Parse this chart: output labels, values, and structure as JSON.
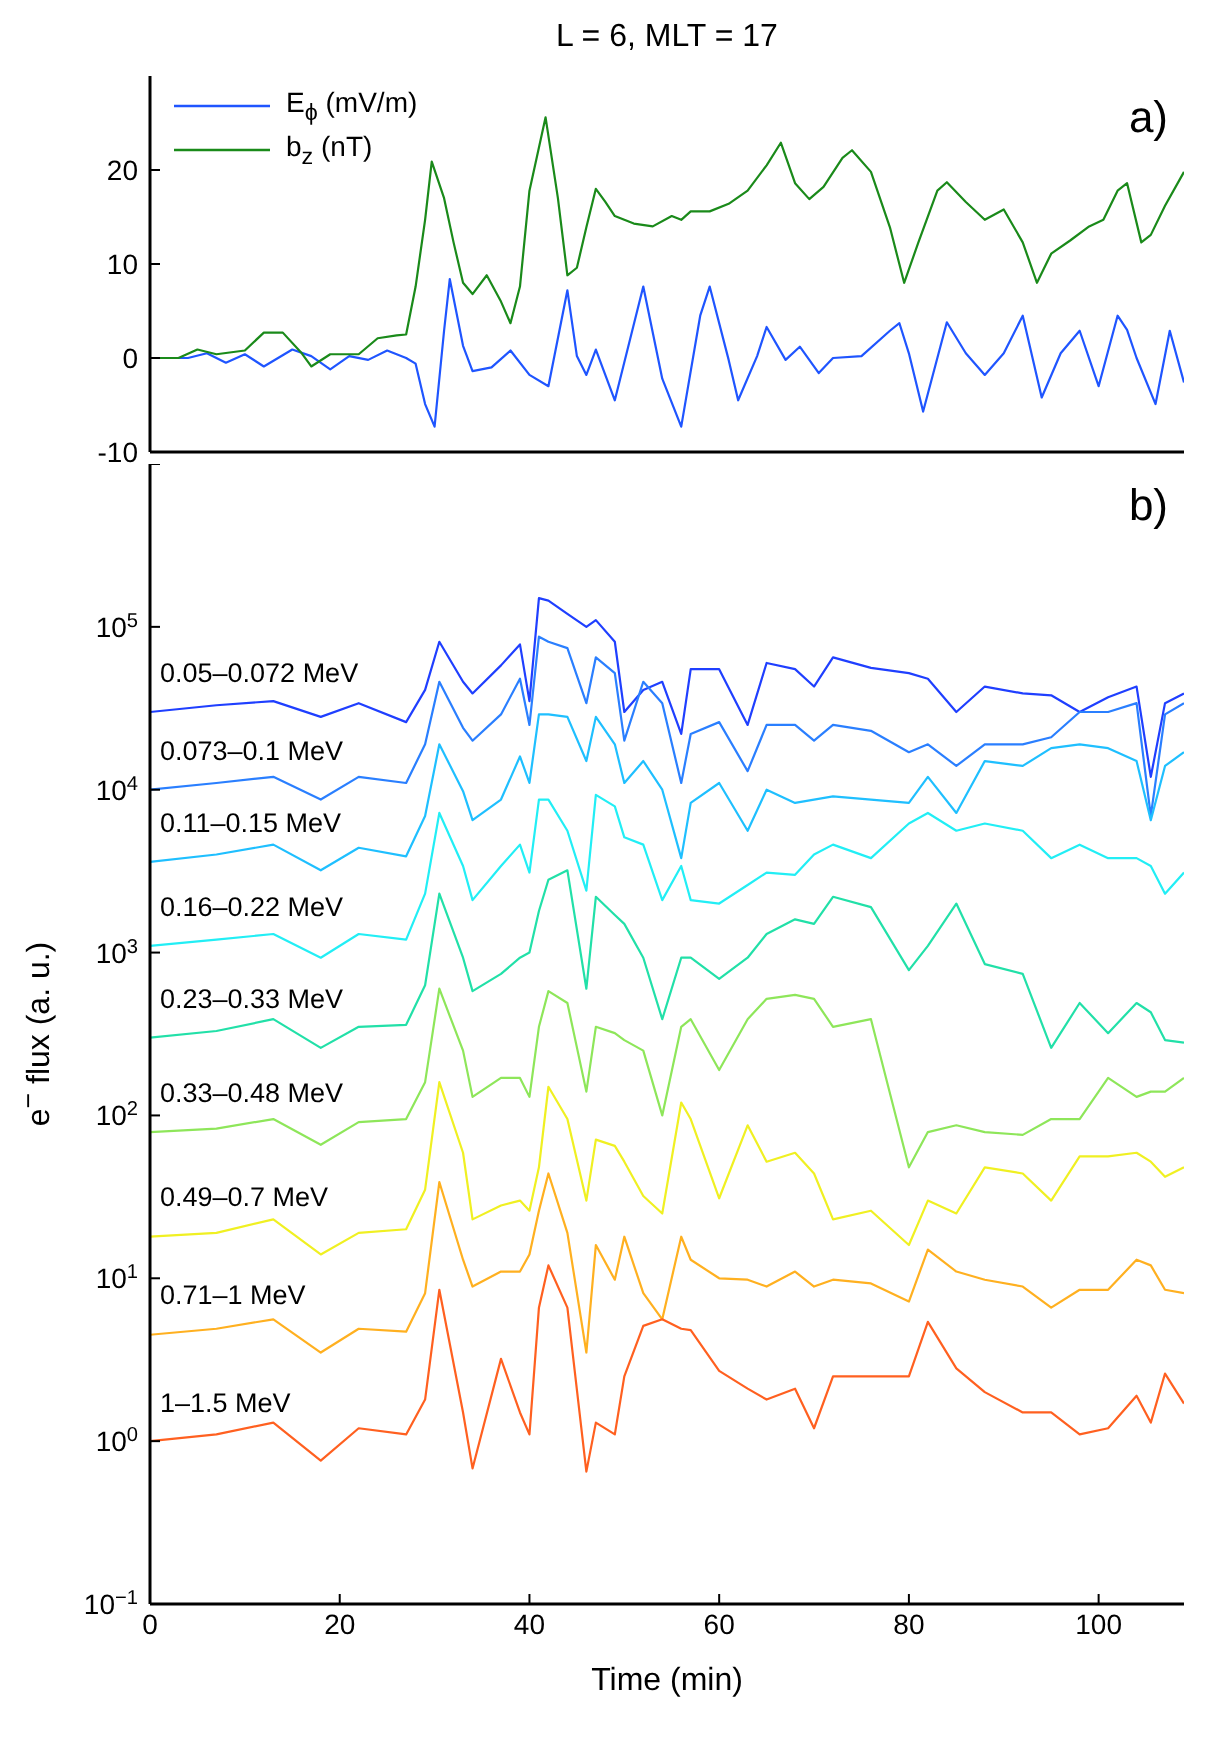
{
  "chart_data": [
    {
      "type": "line",
      "title": "L = 6, MLT = 17",
      "annotations": [
        "a)"
      ],
      "xlim": [
        0,
        109
      ],
      "xticks": [
        0,
        20,
        40,
        60,
        80,
        100
      ],
      "ylim": [
        -10,
        30
      ],
      "yticks": [
        -10,
        0,
        10,
        20
      ],
      "tick_labels": "y",
      "legend": "top left",
      "series": [
        {
          "name": "E$_{ϕ}$ (mV/m)",
          "color": "#1f55ff",
          "x": [
            0,
            4,
            6,
            8,
            10,
            12,
            15,
            17,
            19,
            21,
            23,
            25,
            27,
            28,
            29,
            30,
            31,
            31.6,
            33,
            34,
            36,
            38,
            40,
            42,
            44,
            45,
            46,
            47,
            49,
            52,
            54,
            56,
            58,
            59,
            61,
            62,
            64,
            65,
            67,
            68.5,
            70.5,
            72,
            75,
            78,
            79,
            80,
            81.5,
            84,
            86,
            88,
            90,
            92,
            94,
            96,
            98,
            100,
            102,
            103,
            104,
            106,
            107.5,
            109
          ],
          "values": [
            0,
            0,
            0.5,
            -0.5,
            0.4,
            -0.9,
            0.9,
            0.2,
            -1.2,
            0.2,
            -0.2,
            0.8,
            0,
            -0.6,
            -4.9,
            -7.3,
            2.9,
            8.4,
            1.3,
            -1.4,
            -1,
            0.8,
            -1.8,
            -3,
            7.2,
            0.2,
            -1.8,
            0.9,
            -4.5,
            7.6,
            -2.2,
            -7.3,
            4.5,
            7.6,
            -0.2,
            -4.5,
            0.2,
            3.3,
            -0.2,
            1.2,
            -1.6,
            0,
            0.2,
            2.9,
            3.7,
            0.5,
            -5.7,
            3.8,
            0.5,
            -1.8,
            0.5,
            4.5,
            -4.2,
            0.5,
            2.9,
            -3,
            4.5,
            3,
            0,
            -4.9,
            2.9,
            -2.6
          ]
        },
        {
          "name": "b$_{z}$ (nT)",
          "color": "#1a8a1a",
          "x": [
            0,
            3,
            5,
            7,
            10,
            12,
            14,
            16,
            17,
            19,
            22,
            24,
            26,
            27,
            28,
            29,
            29.7,
            31,
            32,
            33,
            34,
            35.5,
            37,
            38,
            39,
            40,
            41.7,
            43,
            44,
            45,
            46,
            47,
            48,
            49,
            51,
            53,
            55,
            56,
            57,
            59,
            61,
            63,
            65,
            66.5,
            68,
            69.5,
            71,
            73,
            74,
            76,
            78,
            79.5,
            81,
            83,
            84,
            86,
            88,
            90,
            92,
            93.5,
            95,
            97,
            99,
            100.5,
            102,
            103,
            104.5,
            105.5,
            107,
            109
          ],
          "values": [
            0,
            0,
            0.9,
            0.4,
            0.8,
            2.7,
            2.7,
            0.5,
            -0.9,
            0.4,
            0.4,
            2.1,
            2.4,
            2.5,
            7.6,
            14.7,
            20.9,
            17,
            12.3,
            8,
            6.8,
            8.8,
            6,
            3.7,
            7.6,
            17.8,
            25.6,
            17,
            8.8,
            9.6,
            13.9,
            18,
            16.6,
            15.1,
            14.3,
            14,
            15.1,
            14.7,
            15.6,
            15.6,
            16.4,
            17.8,
            20.5,
            22.9,
            18.6,
            16.9,
            18.2,
            21.3,
            22.1,
            19.8,
            13.9,
            8,
            12.3,
            17.8,
            18.7,
            16.6,
            14.7,
            15.8,
            12.3,
            8,
            11.1,
            12.5,
            14,
            14.7,
            17.8,
            18.6,
            12.3,
            13.1,
            16.2,
            19.8
          ]
        }
      ]
    },
    {
      "type": "line",
      "xlabel": "Time (min)",
      "ylabel": "e$^{−}$ flux (a. u.)",
      "annotations": [
        "b)"
      ],
      "log": "y",
      "xlim": [
        0,
        109
      ],
      "xticks": [
        0,
        20,
        40,
        60,
        80,
        100
      ],
      "ylim": [
        0.1,
        1000000
      ],
      "yticks": [
        {
          "value": 0.1,
          "label": "10$^{−1}$"
        },
        {
          "value": 1,
          "label": "10$^{0}$"
        },
        {
          "value": 10,
          "label": "10$^{1}$"
        },
        {
          "value": 100,
          "label": "10$^{2}$"
        },
        {
          "value": 1000,
          "label": "10$^{3}$"
        },
        {
          "value": 10000,
          "label": "10$^{4}$"
        },
        {
          "value": 100000,
          "label": "10$^{5}$"
        },
        {
          "value": 1000000,
          "label": null
        }
      ],
      "x": [
        0,
        7,
        13,
        18,
        22,
        27,
        29,
        30.5,
        33,
        34,
        37,
        39,
        40,
        41,
        42,
        44,
        46,
        47,
        49,
        50,
        52,
        54,
        56,
        57,
        60,
        63,
        65,
        68,
        70,
        72,
        76,
        80,
        82,
        85,
        88,
        92,
        95,
        98,
        101,
        104,
        105.5,
        107,
        109
      ],
      "series": [
        {
          "name": "0.05–0.072 MeV",
          "color": "#1f3fff",
          "values": [
            30000,
            33000,
            35000,
            28000,
            34000,
            26000,
            41000,
            81000,
            46000,
            39000,
            58000,
            78000,
            35000,
            150000,
            145000,
            120000,
            100000,
            110000,
            81000,
            30000,
            41000,
            46000,
            22000,
            55000,
            55000,
            25000,
            60000,
            55000,
            43000,
            65000,
            56000,
            52000,
            48000,
            30000,
            43000,
            39000,
            38000,
            30000,
            37000,
            43000,
            12000,
            34000,
            39000
          ]
        },
        {
          "name": "0.073–0.1 MeV",
          "color": "#2a7fff",
          "values": [
            10000,
            11000,
            12000,
            8700,
            12000,
            11000,
            19000,
            46000,
            24000,
            20000,
            29000,
            48000,
            25000,
            87000,
            81000,
            74000,
            34000,
            65000,
            52000,
            20000,
            46000,
            34000,
            11000,
            22000,
            26000,
            13000,
            25000,
            25000,
            20000,
            25000,
            23000,
            17000,
            19000,
            14000,
            19000,
            19000,
            21000,
            30000,
            30000,
            34000,
            6900,
            29000,
            34000
          ]
        },
        {
          "name": "0.11–0.15 MeV",
          "color": "#1fbfff",
          "values": [
            3600,
            4000,
            4600,
            3200,
            4400,
            3900,
            6900,
            19000,
            9800,
            6500,
            8700,
            16000,
            11000,
            29000,
            29000,
            28000,
            15000,
            28000,
            19000,
            11000,
            15000,
            10000,
            3800,
            8300,
            11000,
            5600,
            10000,
            8300,
            8700,
            9100,
            8700,
            8300,
            12000,
            7200,
            15000,
            14000,
            18000,
            19000,
            18000,
            15000,
            6500,
            14000,
            17000
          ]
        },
        {
          "name": "0.16–0.22 MeV",
          "color": "#22eef5",
          "values": [
            1100,
            1200,
            1300,
            930,
            1300,
            1200,
            2300,
            7200,
            3400,
            2100,
            3400,
            4600,
            3100,
            8700,
            8700,
            5600,
            2400,
            9300,
            7900,
            5100,
            4600,
            2100,
            3400,
            2100,
            2000,
            2600,
            3100,
            3000,
            4000,
            4600,
            3800,
            6200,
            7200,
            5600,
            6200,
            5600,
            3800,
            4600,
            3800,
            3800,
            3400,
            2300,
            3100
          ]
        },
        {
          "name": "0.23–0.33 MeV",
          "color": "#22e0a8",
          "values": [
            300,
            330,
            390,
            260,
            350,
            360,
            630,
            2300,
            930,
            580,
            740,
            930,
            1000,
            1800,
            2800,
            3200,
            600,
            2200,
            1700,
            1500,
            930,
            390,
            930,
            930,
            690,
            930,
            1300,
            1600,
            1500,
            2200,
            1900,
            780,
            1100,
            2000,
            850,
            740,
            260,
            490,
            320,
            490,
            430,
            290,
            280
          ]
        },
        {
          "name": "0.33–0.48 MeV",
          "color": "#8ee65a",
          "values": [
            79,
            83,
            95,
            66,
            91,
            95,
            160,
            600,
            250,
            130,
            170,
            170,
            130,
            350,
            580,
            490,
            140,
            350,
            320,
            290,
            250,
            100,
            350,
            390,
            190,
            390,
            520,
            550,
            520,
            350,
            390,
            48,
            79,
            87,
            79,
            76,
            95,
            95,
            170,
            130,
            140,
            140,
            170
          ]
        },
        {
          "name": "0.49–0.7 MeV",
          "color": "#f0f022",
          "values": [
            18,
            19,
            23,
            14,
            19,
            20,
            35,
            160,
            59,
            23,
            28,
            30,
            26,
            48,
            150,
            95,
            30,
            71,
            65,
            52,
            32,
            25,
            120,
            95,
            31,
            87,
            52,
            59,
            44,
            23,
            26,
            16,
            30,
            25,
            48,
            44,
            30,
            56,
            56,
            59,
            52,
            42,
            48
          ]
        },
        {
          "name": "0.71–1 MeV",
          "color": "#ffb020",
          "values": [
            4.5,
            4.9,
            5.6,
            3.5,
            4.9,
            4.7,
            8.1,
            39,
            13,
            8.9,
            11,
            11,
            14,
            26,
            44,
            19,
            3.5,
            16,
            9.8,
            18,
            8.1,
            5.6,
            18,
            13,
            10,
            9.8,
            8.9,
            11,
            8.9,
            9.8,
            9.3,
            7.2,
            15,
            11,
            9.8,
            8.9,
            6.6,
            8.5,
            8.5,
            13,
            12,
            8.5,
            8.1
          ]
        },
        {
          "name": "1–1.5 MeV",
          "color": "#ff6020",
          "values": [
            1.0,
            1.1,
            1.3,
            0.76,
            1.2,
            1.1,
            1.8,
            8.5,
            1.5,
            0.68,
            3.2,
            1.5,
            1.1,
            6.6,
            12,
            6.6,
            0.65,
            1.3,
            1.1,
            2.5,
            5.1,
            5.6,
            4.9,
            4.8,
            2.7,
            2.1,
            1.8,
            2.1,
            1.2,
            2.5,
            2.5,
            2.5,
            5.4,
            2.8,
            2.0,
            1.5,
            1.5,
            1.1,
            1.2,
            1.9,
            1.3,
            2.6,
            1.7
          ]
        }
      ]
    }
  ]
}
